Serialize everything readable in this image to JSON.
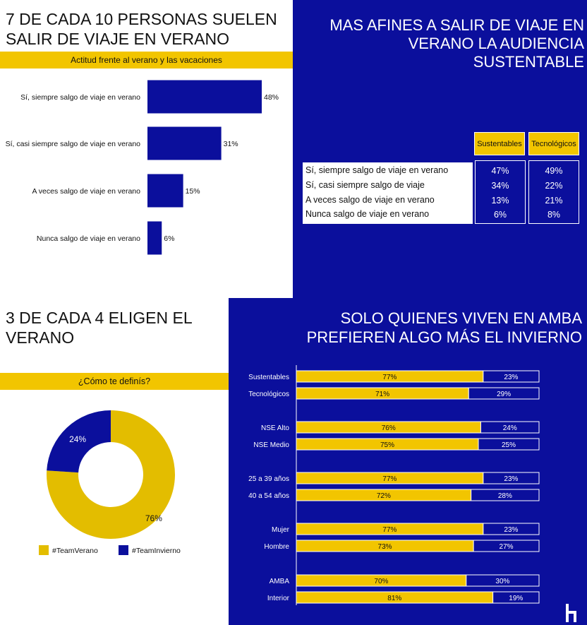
{
  "panel_tl": {
    "title_line1": "7 DE CADA 10 PERSONAS SUELEN",
    "title_line2": "SALIR DE VIAJE EN VERANO",
    "subtitle": "Actitud frente al verano y las vacaciones"
  },
  "panel_tr": {
    "title_line1": "MAS AFINES A SALIR DE VIAJE EN",
    "title_line2": "VERANO LA AUDIENCIA",
    "title_line3": "SUSTENTABLE"
  },
  "panel_bl": {
    "title_line1": "3 DE CADA 4 ELIGEN EL",
    "title_line2": "VERANO",
    "subtitle": "¿Cómo te definís?"
  },
  "panel_br": {
    "title_line1": "SOLO QUIENES VIVEN EN AMBA",
    "title_line2": "PREFIEREN ALGO MÁS EL INVIERNO"
  },
  "colors": {
    "blue": "#0b0f9c",
    "yellow": "#f2c500",
    "pie_yellow": "#e3bd00",
    "white": "#ffffff"
  },
  "logo_icon": "h-logo-icon",
  "chart_data": [
    {
      "type": "bar",
      "orientation": "horizontal",
      "categories": [
        "Sí, siempre salgo de viaje en verano",
        "Sí, casi siempre salgo de viaje en verano",
        "A veces salgo de viaje en verano",
        "Nunca salgo de viaje en verano"
      ],
      "values": [
        48,
        31,
        15,
        6
      ],
      "value_labels": [
        "48%",
        "31%",
        "15%",
        "6%"
      ],
      "xlim": [
        0,
        60
      ]
    },
    {
      "type": "table",
      "columns": [
        "Sustentables",
        "Tecnológicos"
      ],
      "rows": [
        {
          "label": "Sí, siempre salgo de viaje en verano",
          "values": [
            "47%",
            "49%"
          ]
        },
        {
          "label": "Sí, casi siempre salgo de viaje",
          "values": [
            "34%",
            "22%"
          ]
        },
        {
          "label": "A veces salgo de viaje en verano",
          "values": [
            "13%",
            "21%"
          ]
        },
        {
          "label": "Nunca salgo de viaje en verano",
          "values": [
            "6%",
            "8%"
          ]
        }
      ]
    },
    {
      "type": "pie",
      "donut": true,
      "labels": [
        "#TeamVerano",
        "#TeamInvierno"
      ],
      "values": [
        76,
        24
      ],
      "value_labels": [
        "76%",
        "24%"
      ],
      "legend": "bottom"
    },
    {
      "type": "bar",
      "orientation": "horizontal",
      "stacked": true,
      "percent_stacked": true,
      "categories": [
        "Sustentables",
        "Tecnológicos",
        "NSE Alto",
        "NSE Medio",
        "25 a 39 años",
        "40 a 54 años",
        "Mujer",
        "Hombre",
        "AMBA",
        "Interior"
      ],
      "groups": [
        [
          0,
          1
        ],
        [
          2,
          3
        ],
        [
          4,
          5
        ],
        [
          6,
          7
        ],
        [
          8,
          9
        ]
      ],
      "series": [
        {
          "values": [
            77,
            71,
            76,
            75,
            77,
            72,
            77,
            73,
            70,
            81
          ],
          "value_labels": [
            "77%",
            "71%",
            "76%",
            "75%",
            "77%",
            "72%",
            "77%",
            "73%",
            "70%",
            "81%"
          ]
        },
        {
          "values": [
            23,
            29,
            24,
            25,
            23,
            28,
            23,
            27,
            30,
            19
          ],
          "value_labels": [
            "23%",
            "29%",
            "24%",
            "25%",
            "23%",
            "28%",
            "23%",
            "27%",
            "30%",
            "19%"
          ]
        }
      ]
    }
  ]
}
